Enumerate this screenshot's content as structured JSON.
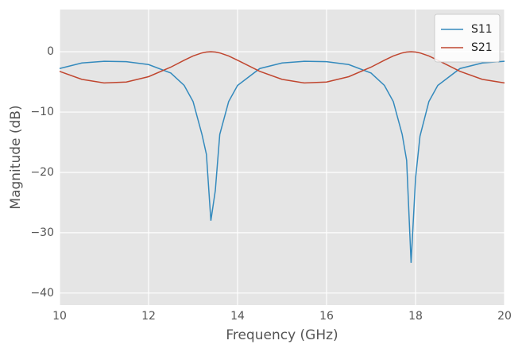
{
  "chart_data": {
    "type": "line",
    "x_label": "Frequency (GHz)",
    "y_label": "Magnitude (dB)",
    "x": [
      10,
      10.5,
      11,
      11.5,
      12,
      12.5,
      12.8,
      13.0,
      13.2,
      13.3,
      13.4,
      13.5,
      13.6,
      13.8,
      14.0,
      14.5,
      15,
      15.5,
      16,
      16.5,
      17,
      17.3,
      17.5,
      17.7,
      17.8,
      17.9,
      18.0,
      18.1,
      18.3,
      18.5,
      19,
      19.5,
      20
    ],
    "series": [
      {
        "name": "S11",
        "color": "#348abd",
        "values": [
          -2.78,
          -1.86,
          -1.58,
          -1.64,
          -2.12,
          -3.53,
          -5.58,
          -8.25,
          -13.7,
          -17,
          -28,
          -23,
          -13.7,
          -8.25,
          -5.58,
          -2.78,
          -1.86,
          -1.58,
          -1.64,
          -2.12,
          -3.53,
          -5.58,
          -8.25,
          -13.7,
          -18,
          -35,
          -21,
          -14,
          -8.25,
          -5.58,
          -2.78,
          -1.86,
          -1.58
        ]
      },
      {
        "name": "S21",
        "color": "#c0462f",
        "values": [
          -3.25,
          -4.57,
          -5.17,
          -5.02,
          -4.13,
          -2.55,
          -1.41,
          -0.7,
          -0.19,
          -0.05,
          0,
          -0.05,
          -0.19,
          -0.7,
          -1.41,
          -3.25,
          -4.57,
          -5.17,
          -5.02,
          -4.13,
          -2.55,
          -1.41,
          -0.7,
          -0.19,
          -0.05,
          0,
          -0.05,
          -0.19,
          -0.7,
          -1.41,
          -3.25,
          -4.57,
          -5.17
        ]
      }
    ],
    "xlim": [
      10,
      20
    ],
    "ylim": [
      -42,
      7
    ],
    "xticks": [
      10,
      12,
      14,
      16,
      18,
      20
    ],
    "yticks": [
      {
        "value": -40,
        "label": "−40"
      },
      {
        "value": -30,
        "label": "−30"
      },
      {
        "value": -20,
        "label": "−20"
      },
      {
        "value": -10,
        "label": "−10"
      },
      0
    ],
    "grid": true,
    "legend": "upper right"
  }
}
